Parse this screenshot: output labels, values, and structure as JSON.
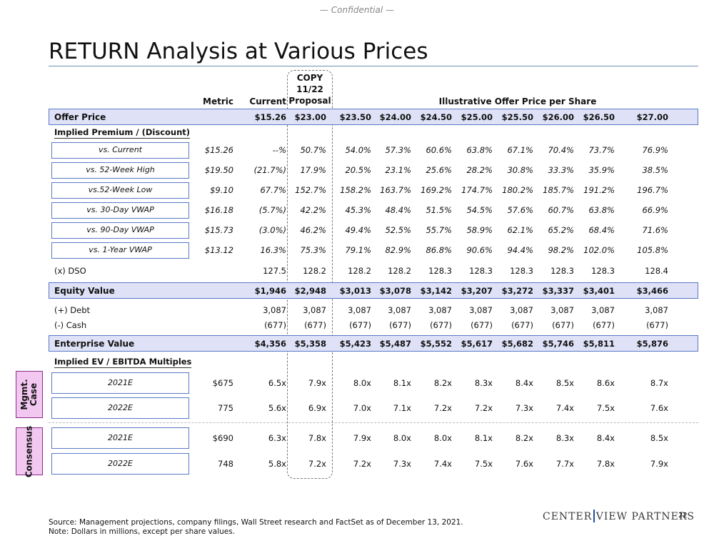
{
  "confidential": "— Confidential —",
  "title": "RETURN Analysis at Various Prices",
  "copy_label": "COPY",
  "headers": {
    "metric": "Metric",
    "current": "Current",
    "proposal_line1": "11/22",
    "proposal_line2": "Proposal",
    "illustrative": "Illustrative Offer Price per Share"
  },
  "offer_price": {
    "label": "Offer Price",
    "values": [
      "$15.26",
      "$23.00",
      "$23.50",
      "$24.00",
      "$24.50",
      "$25.00",
      "$25.50",
      "$26.00",
      "$26.50",
      "$27.00"
    ]
  },
  "premium_section": "Implied Premium / (Discount)",
  "premium_rows": [
    {
      "label": "vs. Current",
      "metric": "$15.26",
      "values": [
        "--%",
        "50.7%",
        "54.0%",
        "57.3%",
        "60.6%",
        "63.8%",
        "67.1%",
        "70.4%",
        "73.7%",
        "76.9%"
      ]
    },
    {
      "label": "vs. 52-Week High",
      "metric": "$19.50",
      "values": [
        "(21.7%)",
        "17.9%",
        "20.5%",
        "23.1%",
        "25.6%",
        "28.2%",
        "30.8%",
        "33.3%",
        "35.9%",
        "38.5%"
      ]
    },
    {
      "label": "vs.52-Week Low",
      "metric": "$9.10",
      "values": [
        "67.7%",
        "152.7%",
        "158.2%",
        "163.7%",
        "169.2%",
        "174.7%",
        "180.2%",
        "185.7%",
        "191.2%",
        "196.7%"
      ]
    },
    {
      "label": "vs. 30-Day VWAP",
      "metric": "$16.18",
      "values": [
        "(5.7%)",
        "42.2%",
        "45.3%",
        "48.4%",
        "51.5%",
        "54.5%",
        "57.6%",
        "60.7%",
        "63.8%",
        "66.9%"
      ]
    },
    {
      "label": "vs. 90-Day VWAP",
      "metric": "$15.73",
      "values": [
        "(3.0%)",
        "46.2%",
        "49.4%",
        "52.5%",
        "55.7%",
        "58.9%",
        "62.1%",
        "65.2%",
        "68.4%",
        "71.6%"
      ]
    },
    {
      "label": "vs. 1-Year VWAP",
      "metric": "$13.12",
      "values": [
        "16.3%",
        "75.3%",
        "79.1%",
        "82.9%",
        "86.8%",
        "90.6%",
        "94.4%",
        "98.2%",
        "102.0%",
        "105.8%"
      ]
    }
  ],
  "dso": {
    "label": "(x) DSO",
    "values": [
      "127.5",
      "128.2",
      "128.2",
      "128.2",
      "128.3",
      "128.3",
      "128.3",
      "128.3",
      "128.3",
      "128.4"
    ]
  },
  "equity_value": {
    "label": "Equity Value",
    "values": [
      "$1,946",
      "$2,948",
      "$3,013",
      "$3,078",
      "$3,142",
      "$3,207",
      "$3,272",
      "$3,337",
      "$3,401",
      "$3,466"
    ]
  },
  "debt": {
    "label": "(+) Debt",
    "values": [
      "3,087",
      "3,087",
      "3,087",
      "3,087",
      "3,087",
      "3,087",
      "3,087",
      "3,087",
      "3,087",
      "3,087"
    ]
  },
  "cash": {
    "label": "(-) Cash",
    "values": [
      "(677)",
      "(677)",
      "(677)",
      "(677)",
      "(677)",
      "(677)",
      "(677)",
      "(677)",
      "(677)",
      "(677)"
    ]
  },
  "enterprise_value": {
    "label": "Enterprise Value",
    "values": [
      "$4,356",
      "$5,358",
      "$5,423",
      "$5,487",
      "$5,552",
      "$5,617",
      "$5,682",
      "$5,746",
      "$5,811",
      "$5,876"
    ]
  },
  "ev_section": "Implied EV / EBITDA Multiples",
  "mgmt_label": "Mgmt. Case",
  "consensus_label": "Consensus",
  "ev_rows": [
    {
      "label": "2021E",
      "metric": "$675",
      "values": [
        "6.5x",
        "7.9x",
        "8.0x",
        "8.1x",
        "8.2x",
        "8.3x",
        "8.4x",
        "8.5x",
        "8.6x",
        "8.7x"
      ]
    },
    {
      "label": "2022E",
      "metric": "775",
      "values": [
        "5.6x",
        "6.9x",
        "7.0x",
        "7.1x",
        "7.2x",
        "7.2x",
        "7.3x",
        "7.4x",
        "7.5x",
        "7.6x"
      ]
    },
    {
      "label": "2021E",
      "metric": "$690",
      "values": [
        "6.3x",
        "7.8x",
        "7.9x",
        "8.0x",
        "8.0x",
        "8.1x",
        "8.2x",
        "8.3x",
        "8.4x",
        "8.5x"
      ]
    },
    {
      "label": "2022E",
      "metric": "748",
      "values": [
        "5.8x",
        "7.2x",
        "7.2x",
        "7.3x",
        "7.4x",
        "7.5x",
        "7.6x",
        "7.7x",
        "7.8x",
        "7.9x"
      ]
    }
  ],
  "footer": {
    "source": "Source: Management projections, company filings, Wall Street research and FactSet as of December 13, 2021.",
    "note": "Note:    Dollars in millions, except per share values."
  },
  "logo": {
    "left": "CENTER",
    "right": "VIEW PARTNERS"
  },
  "page_number": "22"
}
